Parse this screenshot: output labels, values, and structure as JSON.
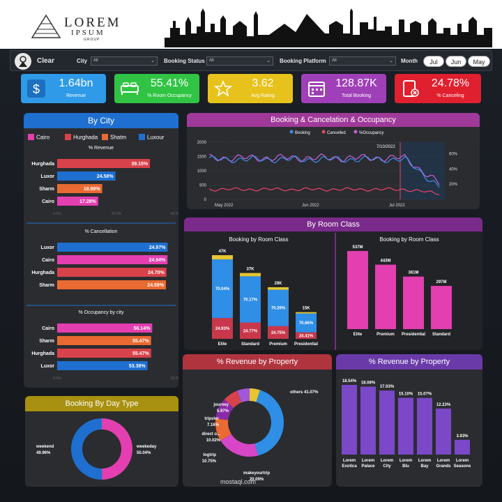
{
  "brand": {
    "line1": "LOREM",
    "line2": "IPSUM",
    "line3": "GROUP"
  },
  "filters": {
    "clear_label": "Clear",
    "city_label": "City",
    "city_value": "All",
    "status_label": "Booking Status",
    "status_value": "All",
    "platform_label": "Booking Platform",
    "platform_value": "All",
    "month_label": "Month",
    "months": [
      "Jul",
      "Jun",
      "May"
    ]
  },
  "kpis": [
    {
      "value": "1.64bn",
      "label": "Revenue",
      "color": "#2f9be8",
      "icon": "dollar-icon"
    },
    {
      "value": "55.41%",
      "label": "% Room Occupancy",
      "color": "#31c444",
      "icon": "bed-icon"
    },
    {
      "value": "3.62",
      "label": "Avg Rating",
      "color": "#e8c21c",
      "icon": "stars-icon"
    },
    {
      "value": "128.87K",
      "label": "Total Booking",
      "color": "#a040b8",
      "icon": "calendar-icon"
    },
    {
      "value": "24.78%",
      "label": "% Canceling",
      "color": "#e0202e",
      "icon": "cancel-document-icon"
    }
  ],
  "by_city": {
    "title": "By City",
    "legend": [
      {
        "name": "Cairo",
        "color": "#e33fb0"
      },
      {
        "name": "Hurghada",
        "color": "#d8424a"
      },
      {
        "name": "Shatm",
        "color": "#ea6a33"
      },
      {
        "name": "Luxour",
        "color": "#1f6fd0"
      }
    ],
    "revenue": {
      "title": "% Revenue",
      "ticks": [
        "0.0%",
        "20.0%",
        "40.0%"
      ],
      "rows": [
        {
          "name": "Hurghada",
          "value": 39.15,
          "label": "39.15%",
          "color": "#d8424a"
        },
        {
          "name": "Luxor",
          "value": 24.58,
          "label": "24.58%",
          "color": "#1f6fd0"
        },
        {
          "name": "Sharm",
          "value": 18.99,
          "label": "18.99%",
          "color": "#ea6a33"
        },
        {
          "name": "Cairo",
          "value": 17.28,
          "label": "17.28%",
          "color": "#e33fb0"
        }
      ]
    },
    "cancellation": {
      "title": "% Cancellation",
      "rows": [
        {
          "name": "Luxor",
          "value": 24.97,
          "label": "24.97%",
          "color": "#1f6fd0"
        },
        {
          "name": "Cairo",
          "value": 24.94,
          "label": "24.94%",
          "color": "#e33fb0"
        },
        {
          "name": "Hurghada",
          "value": 24.7,
          "label": "24.70%",
          "color": "#d8424a"
        },
        {
          "name": "Sharm",
          "value": 24.59,
          "label": "24.59%",
          "color": "#ea6a33"
        }
      ]
    },
    "occupancy": {
      "title": "% Occupancy by city",
      "ticks": [
        "0.0%",
        "50.0%"
      ],
      "rows": [
        {
          "name": "Cairo",
          "value": 56.14,
          "label": "56.14%",
          "color": "#e33fb0"
        },
        {
          "name": "Sharm",
          "value": 55.47,
          "label": "55.47%",
          "color": "#ea6a33"
        },
        {
          "name": "Hurghada",
          "value": 55.47,
          "label": "55.47%",
          "color": "#d8424a"
        },
        {
          "name": "Luxor",
          "value": 53.38,
          "label": "53.38%",
          "color": "#1f6fd0"
        }
      ]
    }
  },
  "chart_data": [
    {
      "type": "line",
      "title": "Booking & Cancelation & Occupancy",
      "legend": [
        "Booking",
        "Cancelled",
        "%Occupancy"
      ],
      "colors": [
        "#3d8ee8",
        "#e8466a",
        "#c760d8"
      ],
      "x_ticks": [
        "May 2022",
        "Jun 2022",
        "Jul 2022"
      ],
      "y_ticks": [
        0,
        500,
        1000,
        1500,
        2000
      ],
      "y2_ticks": [
        "20%",
        "40%",
        "60%"
      ],
      "annotation": "7/10/2022",
      "ylim": [
        0,
        2000
      ]
    },
    {
      "type": "bar",
      "title": "Booking by Room Class",
      "categories": [
        "Elite",
        "Standard",
        "Premium",
        "Presidential"
      ],
      "totals": [
        "47K",
        "37K",
        "29K",
        "15K"
      ],
      "total_values": [
        47,
        37,
        29,
        15
      ],
      "series": [
        {
          "values": [
            70.04,
            70.17,
            70.26,
            70.66
          ],
          "labels": [
            "70.04%",
            "70.17%",
            "70.26%",
            "70.66%"
          ],
          "color": "#2f8ee6"
        },
        {
          "values": [
            24.93,
            24.77,
            24.75,
            24.41
          ],
          "labels": [
            "24.93%",
            "24.77%",
            "24.75%",
            "24.41%"
          ],
          "color": "#c8384a"
        },
        {
          "values": [
            5.03,
            5.06,
            4.99,
            4.93
          ],
          "color": "#e6c530"
        }
      ]
    },
    {
      "type": "bar",
      "title": "Booking by Room Class",
      "categories": [
        "Elite",
        "Premium",
        "Presidential",
        "Standard"
      ],
      "values": [
        537,
        443,
        361,
        297
      ],
      "labels": [
        "537M",
        "443M",
        "361M",
        "297M"
      ],
      "color": "#e33fb0"
    },
    {
      "type": "pie",
      "title": "% Revenue by Property",
      "slices": [
        {
          "name": "others",
          "value": 41.07,
          "label": "others 41.07%",
          "color": "#2f8ee6"
        },
        {
          "name": "makeyourtrip",
          "value": 20.09,
          "label": "makeyourtrip 20.09%",
          "color": "#d646c6"
        },
        {
          "name": "logtrip",
          "value": 10.75,
          "label": "logtrip 10.75%",
          "color": "#ea6a33"
        },
        {
          "name": "direct o...",
          "value": 10.02,
          "label": "direct o... 10.02%",
          "color": "#8a2aa8"
        },
        {
          "name": "tripster",
          "value": 7.16,
          "label": "tripster 7.16%",
          "color": "#d8424a"
        },
        {
          "name": "journey",
          "value": 5.97,
          "label": "journey 5.97%",
          "color": "#a057d8"
        },
        {
          "name": "other",
          "value": 4.94,
          "label": "",
          "color": "#e6c530"
        }
      ]
    },
    {
      "type": "bar",
      "title": "% Revenue by Property",
      "categories": [
        "Lorem Exotica",
        "Lorem Palace",
        "Lorem City",
        "Lorem Blu",
        "Lorem Bay",
        "Lorem Grands",
        "Lorem Seasons"
      ],
      "values": [
        18.54,
        18.08,
        17.03,
        15.1,
        15.07,
        12.23,
        3.93
      ],
      "labels": [
        "18.54%",
        "18.08%",
        "17.03%",
        "15.10%",
        "15.07%",
        "12.23%",
        "3.93%"
      ],
      "color": "#7b48c8"
    },
    {
      "type": "pie",
      "title": "Booking By Day Type",
      "slices": [
        {
          "name": "weekend",
          "value": 49.96,
          "label": "weekend 49.96%",
          "color": "#e33fb0"
        },
        {
          "name": "weekeday",
          "value": 50.04,
          "label": "weekeday 50.04%",
          "color": "#1f6fd0"
        }
      ]
    }
  ],
  "sections": {
    "room_class": "By Room Class"
  },
  "watermark": "mostaql.com"
}
